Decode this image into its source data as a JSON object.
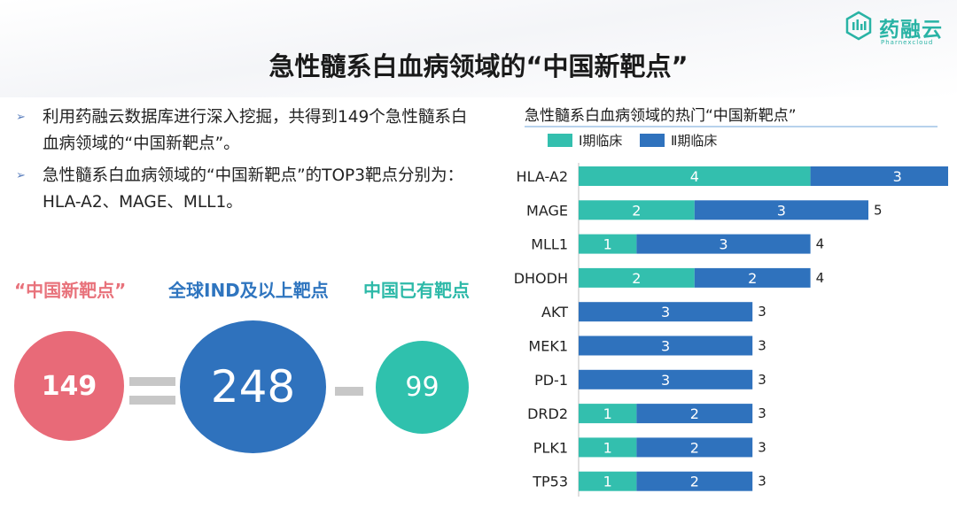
{
  "header": {
    "title": "急性髓系白血病领域的“中国新靶点”",
    "logo_text": "药融云",
    "logo_sub": "Pharnexcloud"
  },
  "bullets": [
    "利用药融云数据库进行深入挖掘，共得到149个急性髓系白血病领域的“中国新靶点”。",
    "急性髓系白血病领域的“中国新靶点”的TOP3靶点分别为：HLA-A2、MAGE、MLL1。"
  ],
  "bullet_marker": "➢",
  "equation": {
    "labels": [
      "“中国新靶点”",
      "全球IND及以上靶点",
      "中国已有靶点"
    ],
    "values": [
      "149",
      "248",
      "99"
    ],
    "colors": [
      "#e86a78",
      "#2f72bd",
      "#2fc1ad"
    ]
  },
  "chart_data": {
    "type": "bar",
    "orientation": "horizontal",
    "stacked": true,
    "title": "急性髓系白血病领域的热门“中国新靶点”",
    "categories": [
      "HLA-A2",
      "MAGE",
      "MLL1",
      "DHODH",
      "AKT",
      "MEK1",
      "PD-1",
      "DRD2",
      "PLK1",
      "TP53"
    ],
    "series": [
      {
        "name": "Ⅰ期临床",
        "color": "#33bfae",
        "values": [
          4,
          2,
          1,
          2,
          0,
          0,
          0,
          1,
          1,
          1
        ]
      },
      {
        "name": "Ⅱ期临床",
        "color": "#2f72bd",
        "values": [
          3,
          3,
          3,
          2,
          3,
          3,
          3,
          2,
          2,
          2
        ]
      }
    ],
    "totals": [
      7,
      5,
      4,
      4,
      3,
      3,
      3,
      3,
      3,
      3
    ],
    "xlim": [
      0,
      7
    ],
    "legend_position": "top-left",
    "grid": false
  }
}
